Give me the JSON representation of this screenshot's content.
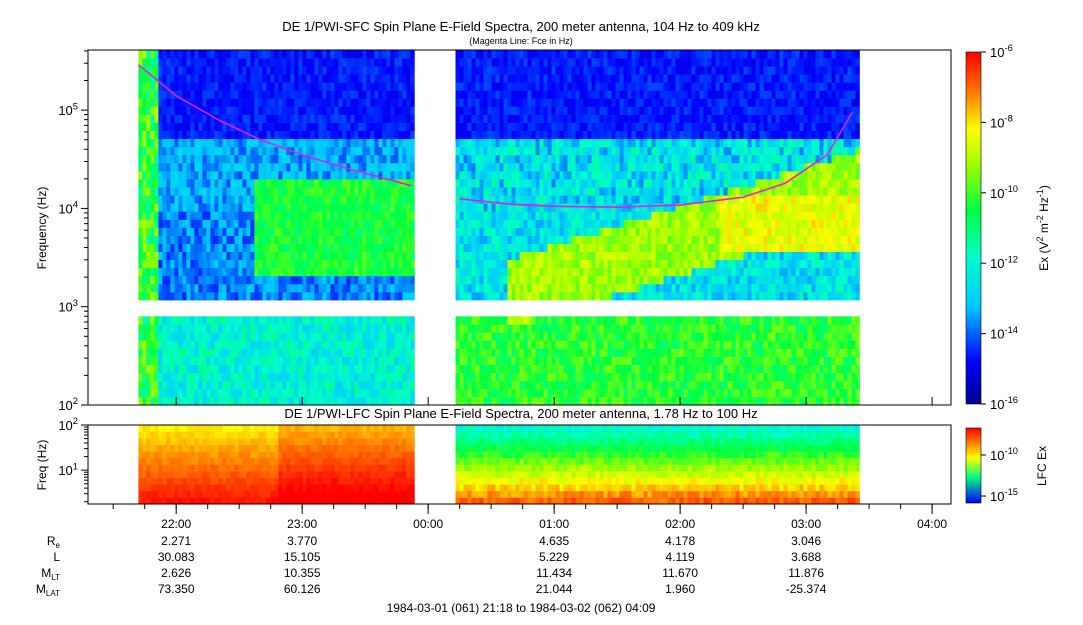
{
  "chart_data": [
    {
      "type": "heatmap",
      "title": "DE 1/PWI-SFC  Spin Plane E-Field Spectra, 200 meter antenna, 104 Hz to 409 kHz",
      "subtitle": "(Magenta Line: Fce in Hz)",
      "ylabel": "Frequency (Hz)",
      "yscale": "log",
      "ylim": [
        100,
        409000
      ],
      "yticks": [
        {
          "base": "10",
          "exp": "2"
        },
        {
          "base": "10",
          "exp": "3"
        },
        {
          "base": "10",
          "exp": "4"
        },
        {
          "base": "10",
          "exp": "5"
        }
      ],
      "colorbar": {
        "label_parts": [
          "Ex (V",
          "2",
          " m",
          "-2",
          " Hz",
          "-1",
          ")"
        ],
        "scale": "log",
        "range": [
          1e-16,
          1e-06
        ],
        "ticks": [
          {
            "base": "10",
            "exp": "-6"
          },
          {
            "base": "10",
            "exp": "-8"
          },
          {
            "base": "10",
            "exp": "-10"
          },
          {
            "base": "10",
            "exp": "-12"
          },
          {
            "base": "10",
            "exp": "-14"
          },
          {
            "base": "10",
            "exp": "-16"
          }
        ]
      },
      "data_gaps_utc": [
        [
          "00:00 -0:15",
          "00:13"
        ],
        [
          "03:25",
          "04:09"
        ],
        [
          "21:18",
          "21:40"
        ]
      ],
      "fce_curve": {
        "color": "#e020e0",
        "segments": [
          {
            "t": [
              "21:42",
              "22:00",
              "22:20",
              "22:40",
              "23:00",
              "23:20",
              "23:40",
              "23:52"
            ],
            "f": [
              290000,
              140000,
              80000,
              50000,
              35000,
              26000,
              20000,
              17000
            ]
          },
          {
            "t": [
              "00:15",
              "00:40",
              "01:00",
              "01:30",
              "02:00",
              "02:30",
              "02:50",
              "03:10",
              "03:22"
            ],
            "f": [
              12500,
              11000,
              10500,
              10300,
              10800,
              13000,
              18000,
              35000,
              95000
            ]
          }
        ]
      },
      "intensity_note": ""
    },
    {
      "type": "heatmap",
      "title": "DE 1/PWI-LFC  Spin Plane E-Field Spectra, 200 meter antenna, 1.78 Hz to 100 Hz",
      "ylabel": "Freq (Hz)",
      "yscale": "log",
      "ylim": [
        1.78,
        100
      ],
      "yticks": [
        {
          "base": "10",
          "exp": "1"
        },
        {
          "base": "10",
          "exp": "2"
        }
      ],
      "colorbar": {
        "label": "LFC Ex",
        "scale": "log",
        "ticks": [
          {
            "base": "10",
            "exp": "-10"
          },
          {
            "base": "10",
            "exp": "-15"
          }
        ]
      }
    }
  ],
  "xaxis": {
    "ticks": [
      "22:00",
      "23:00",
      "00:00",
      "01:00",
      "02:00",
      "03:00",
      "04:00"
    ],
    "range_label": "1984-03-01 (061) 21:18 to 1984-03-02 (062) 04:09"
  },
  "ephemeris": {
    "rows": [
      {
        "label": "R",
        "sub": "e",
        "values": [
          "2.271",
          "3.770",
          "",
          "4.635",
          "4.178",
          "3.046"
        ]
      },
      {
        "label": "L",
        "sub": "",
        "values": [
          "30.083",
          "15.105",
          "",
          "5.229",
          "4.119",
          "3.688"
        ]
      },
      {
        "label": "M",
        "sub": "LT",
        "values": [
          "2.626",
          "10.355",
          "",
          "11.434",
          "11.670",
          "11.876"
        ]
      },
      {
        "label": "M",
        "sub": "LAT",
        "values": [
          "73.350",
          "60.126",
          "",
          "21.044",
          "1.960",
          "-25.374"
        ]
      }
    ]
  }
}
